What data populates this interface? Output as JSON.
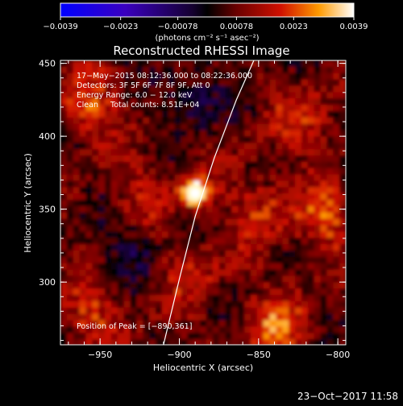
{
  "chart_data": {
    "type": "heatmap",
    "title": "Reconstructed RHESSI Image",
    "xlabel": "Heliocentric X (arcsec)",
    "ylabel": "Heliocentric Y (arcsec)",
    "xlim": [
      -975,
      -795
    ],
    "ylim": [
      257,
      452
    ],
    "xticks": [
      -950,
      -900,
      -850,
      -800
    ],
    "xtick_labels": [
      "−950",
      "−900",
      "−850",
      "−800"
    ],
    "yticks": [
      300,
      350,
      400,
      450
    ],
    "ytick_labels": [
      "300",
      "350",
      "400",
      "450"
    ],
    "colorbar": {
      "min": -0.0039,
      "max": 0.0039,
      "ticks": [
        -0.0039,
        -0.0023,
        -0.00078,
        0.00078,
        0.0023,
        0.0039
      ],
      "tick_labels": [
        "−0.0039",
        "−0.0023",
        "−0.00078",
        "0.00078",
        "0.0023",
        "0.0039"
      ],
      "units_label": "(photons cm⁻² s⁻¹ asec⁻²)"
    },
    "annotations": [
      "17−May−2015 08:12:36.000 to 08:22:36.000",
      "Detectors: 3F 5F 6F 7F 8F 9F, Att 0",
      "Energy Range: 6.0 − 12.0 keV",
      "Clean     Total counts: 8.51E+04"
    ],
    "peak_label": "Position of Peak = [−890,361]",
    "peak": {
      "x": -890,
      "y": 361
    },
    "limb": [
      [
        -910,
        257
      ],
      [
        -900,
        302
      ],
      [
        -890,
        345
      ],
      [
        -878,
        385
      ],
      [
        -864,
        425
      ],
      [
        -853,
        452
      ]
    ],
    "footer": "23−Oct−2017 11:58"
  }
}
